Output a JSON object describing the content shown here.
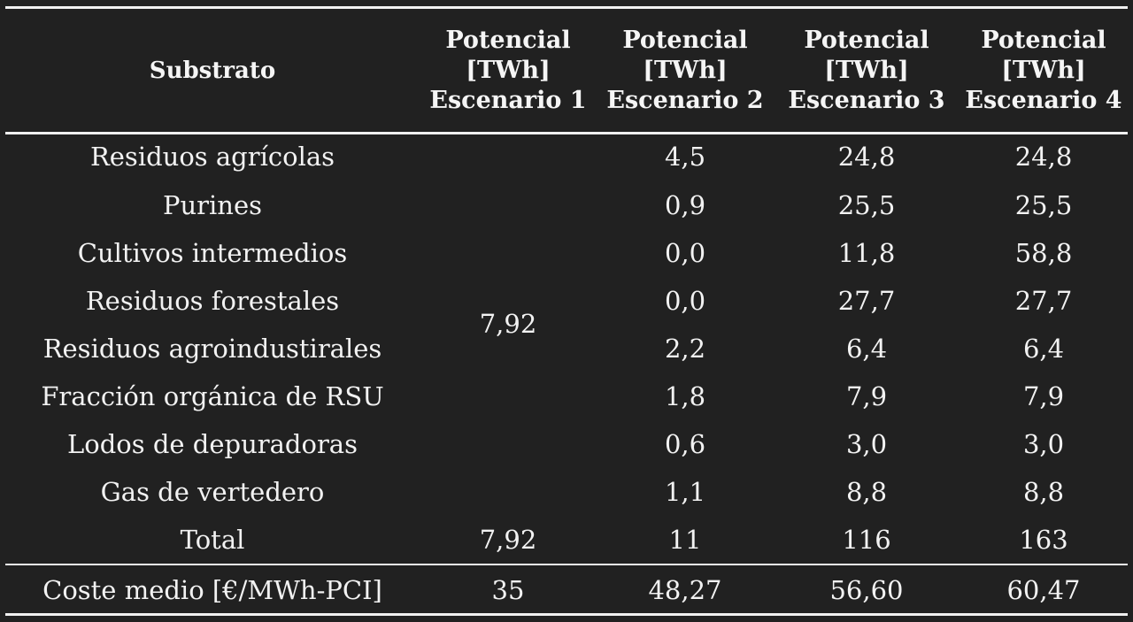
{
  "table": {
    "header": {
      "substrato": "Substrato",
      "scenarios": [
        [
          "Potencial",
          "[TWh]",
          "Escenario 1"
        ],
        [
          "Potencial",
          "[TWh]",
          "Escenario 2"
        ],
        [
          "Potencial",
          "[TWh]",
          "Escenario 3"
        ],
        [
          "Potencial",
          "[TWh]",
          "Escenario 4"
        ]
      ]
    },
    "rows": [
      {
        "name": "Residuos agrícolas",
        "e2": "4,5",
        "e3": "24,8",
        "e4": "24,8"
      },
      {
        "name": "Purines",
        "e2": "0,9",
        "e3": "25,5",
        "e4": "25,5"
      },
      {
        "name": "Cultivos intermedios",
        "e2": "0,0",
        "e3": "11,8",
        "e4": "58,8"
      },
      {
        "name": "Residuos forestales",
        "e2": "0,0",
        "e3": "27,7",
        "e4": "27,7"
      },
      {
        "name": "Residuos agroindustirales",
        "e2": "2,2",
        "e3": "6,4",
        "e4": "6,4"
      },
      {
        "name": "Fracción orgánica de RSU",
        "e2": "1,8",
        "e3": "7,9",
        "e4": "7,9"
      },
      {
        "name": "Lodos de depuradoras",
        "e2": "0,6",
        "e3": "3,0",
        "e4": "3,0"
      },
      {
        "name": "Gas de vertedero",
        "e2": "1,1",
        "e3": "8,8",
        "e4": "8,8"
      }
    ],
    "e1_merged_value": "7,92",
    "total": {
      "name": "Total",
      "e1": "7,92",
      "e2": "11",
      "e3": "116",
      "e4": "163"
    },
    "cost": {
      "name": "Coste medio [€/MWh-PCI]",
      "e1": "35",
      "e2": "48,27",
      "e3": "56,60",
      "e4": "60,47"
    }
  }
}
